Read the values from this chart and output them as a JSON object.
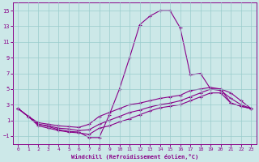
{
  "xlabel": "Windchill (Refroidissement éolien,°C)",
  "bg_color": "#cce8e8",
  "grid_color": "#99cccc",
  "line_color": "#880088",
  "xlim": [
    -0.5,
    23.5
  ],
  "ylim": [
    -2,
    16
  ],
  "xticks": [
    0,
    1,
    2,
    3,
    4,
    5,
    6,
    7,
    8,
    9,
    10,
    11,
    12,
    13,
    14,
    15,
    16,
    17,
    18,
    19,
    20,
    21,
    22,
    23
  ],
  "yticks": [
    -1,
    1,
    3,
    5,
    7,
    9,
    11,
    13,
    15
  ],
  "line1_x": [
    0,
    1,
    2,
    3,
    4,
    5,
    6,
    7,
    8,
    9,
    10,
    11,
    12,
    13,
    14,
    15,
    16,
    17,
    18,
    19,
    20,
    21,
    22,
    23
  ],
  "line1_y": [
    2.5,
    1.5,
    0.5,
    0.2,
    -0.2,
    -0.4,
    -0.5,
    -1.2,
    -1.2,
    1.7,
    5.0,
    9.0,
    13.2,
    14.3,
    15.0,
    15.0,
    12.8,
    6.8,
    7.0,
    5.0,
    5.0,
    3.2,
    2.8,
    2.5
  ],
  "line2_x": [
    0,
    1,
    2,
    3,
    4,
    5,
    6,
    7,
    8,
    9,
    10,
    11,
    12,
    13,
    14,
    15,
    16,
    17,
    18,
    19,
    20,
    21,
    22,
    23
  ],
  "line2_y": [
    2.5,
    1.5,
    0.7,
    0.5,
    0.3,
    0.2,
    0.1,
    0.5,
    1.5,
    2.0,
    2.5,
    3.0,
    3.2,
    3.5,
    3.8,
    4.0,
    4.2,
    4.8,
    5.0,
    5.2,
    5.0,
    4.5,
    3.5,
    2.5
  ],
  "line3_x": [
    0,
    1,
    2,
    3,
    4,
    5,
    6,
    7,
    8,
    9,
    10,
    11,
    12,
    13,
    14,
    15,
    16,
    17,
    18,
    19,
    20,
    21,
    22,
    23
  ],
  "line3_y": [
    2.5,
    1.5,
    0.5,
    0.3,
    0.0,
    -0.1,
    -0.3,
    -0.2,
    0.5,
    1.0,
    1.5,
    2.0,
    2.3,
    2.7,
    3.0,
    3.2,
    3.5,
    4.0,
    4.5,
    5.0,
    4.8,
    3.8,
    3.0,
    2.5
  ],
  "line4_x": [
    0,
    1,
    2,
    3,
    4,
    5,
    6,
    7,
    8,
    9,
    10,
    11,
    12,
    13,
    14,
    15,
    16,
    17,
    18,
    19,
    20,
    21,
    22,
    23
  ],
  "line4_y": [
    2.5,
    1.5,
    0.3,
    0.0,
    -0.3,
    -0.5,
    -0.6,
    -0.8,
    0.0,
    0.3,
    0.8,
    1.2,
    1.7,
    2.2,
    2.6,
    2.8,
    3.0,
    3.5,
    4.0,
    4.5,
    4.5,
    3.2,
    2.8,
    2.5
  ]
}
